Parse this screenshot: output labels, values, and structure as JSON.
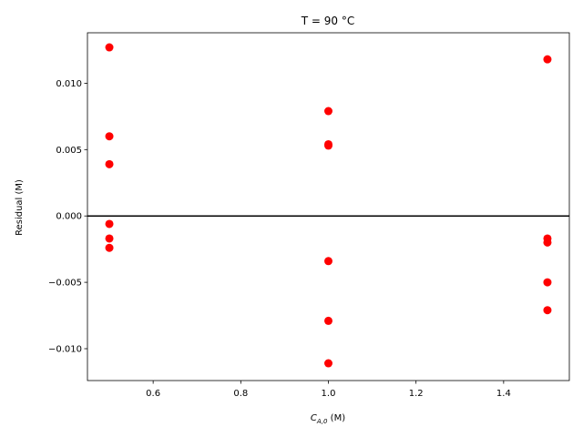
{
  "chart_data": {
    "type": "scatter",
    "title": "T = 90 °C",
    "xlabel_main": "C",
    "xlabel_sub": "A,0",
    "xlabel_unit": " (M)",
    "ylabel": "Residual (M)",
    "xlim": [
      0.45,
      1.55
    ],
    "ylim": [
      -0.0124,
      0.0138
    ],
    "xticks": [
      0.6,
      0.8,
      1.0,
      1.2,
      1.4
    ],
    "xtick_labels": [
      "0.6",
      "0.8",
      "1.0",
      "1.2",
      "1.4"
    ],
    "yticks": [
      -0.01,
      -0.005,
      0.0,
      0.005,
      0.01
    ],
    "ytick_labels": [
      "−0.010",
      "−0.005",
      "0.000",
      "0.005",
      "0.010"
    ],
    "zero_line": 0.0,
    "grid": false,
    "marker_color": "#ff0000",
    "line_color": "#000000",
    "series": [
      {
        "points": [
          {
            "x": 0.5,
            "y": 0.0127
          },
          {
            "x": 0.5,
            "y": 0.006
          },
          {
            "x": 0.5,
            "y": 0.0039
          },
          {
            "x": 0.5,
            "y": -0.0006
          },
          {
            "x": 0.5,
            "y": -0.0017
          },
          {
            "x": 0.5,
            "y": -0.0024
          },
          {
            "x": 1.0,
            "y": 0.0079
          },
          {
            "x": 1.0,
            "y": 0.0054
          },
          {
            "x": 1.0,
            "y": 0.0053
          },
          {
            "x": 1.0,
            "y": -0.0034
          },
          {
            "x": 1.0,
            "y": -0.0079
          },
          {
            "x": 1.0,
            "y": -0.0111
          },
          {
            "x": 1.5,
            "y": 0.0118
          },
          {
            "x": 1.5,
            "y": -0.0017
          },
          {
            "x": 1.5,
            "y": -0.002
          },
          {
            "x": 1.5,
            "y": -0.005
          },
          {
            "x": 1.5,
            "y": -0.0071
          }
        ]
      }
    ]
  }
}
